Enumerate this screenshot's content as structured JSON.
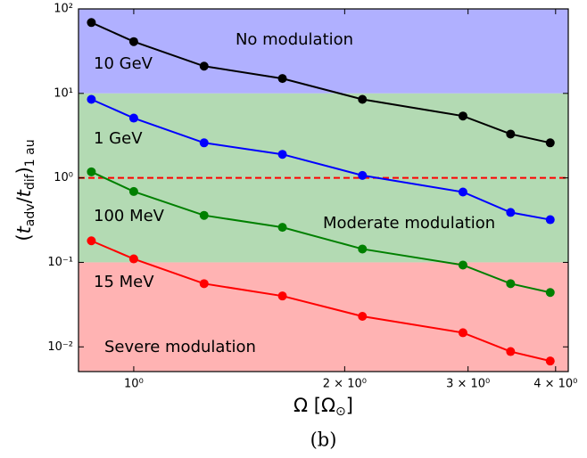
{
  "chart_data": {
    "type": "line",
    "log_x": true,
    "log_y": true,
    "x_label_parts": [
      "Ω [Ω",
      "⊙",
      "]"
    ],
    "y_label_parts": [
      "(",
      "t",
      "adv",
      "/",
      "t",
      "dif",
      ")",
      "1 au"
    ],
    "caption": "(b)",
    "x": [
      0.87,
      1.0,
      1.26,
      1.63,
      2.12,
      2.95,
      3.45,
      3.93
    ],
    "series": [
      {
        "name": "10 GeV",
        "color": "#000000",
        "values": [
          69,
          41,
          21,
          15,
          8.5,
          5.4,
          3.3,
          2.6
        ]
      },
      {
        "name": "1 GeV",
        "color": "#0000ff",
        "values": [
          8.5,
          5.1,
          2.6,
          1.9,
          1.07,
          0.68,
          0.39,
          0.32
        ]
      },
      {
        "name": "100 MeV",
        "color": "#008000",
        "values": [
          1.18,
          0.69,
          0.36,
          0.26,
          0.144,
          0.093,
          0.056,
          0.044
        ]
      },
      {
        "name": "15 MeV",
        "color": "#ff0000",
        "values": [
          0.18,
          0.11,
          0.056,
          0.04,
          0.023,
          0.0147,
          0.0088,
          0.0068
        ]
      }
    ],
    "bands": [
      {
        "lower": 10,
        "upper": 100,
        "color": "#b0b0ff"
      },
      {
        "lower": 0.1,
        "upper": 10,
        "color": "#b3dab3"
      },
      {
        "lower": null,
        "upper": 0.1,
        "color": "#ffb3b3"
      }
    ],
    "hline": {
      "value": 1,
      "color": "#ff0000"
    },
    "annotations": [
      "No modulation",
      "Moderate modulation",
      "Severe modulation"
    ],
    "xlim": [
      0.834,
      4.17
    ],
    "ylim": [
      0.0051,
      100
    ],
    "xticks": [
      {
        "value": 1,
        "label": "10⁰"
      },
      {
        "value": 2,
        "label": "2 × 10⁰"
      },
      {
        "value": 3,
        "label": "3 × 10⁰"
      },
      {
        "value": 4,
        "label": "4 × 10⁰"
      }
    ],
    "yticks": [
      {
        "value": 0.01,
        "label": "10⁻²"
      },
      {
        "value": 0.1,
        "label": "10⁻¹"
      },
      {
        "value": 1,
        "label": "10⁰"
      },
      {
        "value": 10,
        "label": "10¹"
      },
      {
        "value": 100,
        "label": "10²"
      }
    ]
  }
}
